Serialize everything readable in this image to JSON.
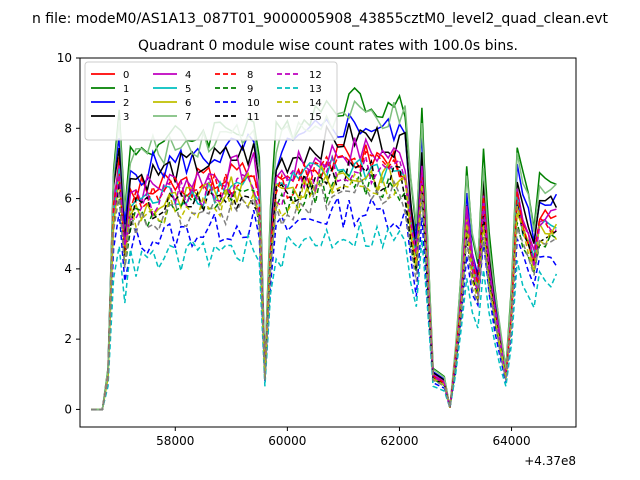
{
  "figure": {
    "suptitle": "n file: modeM0/AS1A13_087T01_9000005908_43855cztM0_level2_quad_clean.evt",
    "offset_label": "+4.37e8"
  },
  "chart_data": {
    "type": "line",
    "title": "Quadrant 0 module wise count rates with 100.0s bins.",
    "xlabel": "",
    "ylabel": "",
    "xlim": [
      56300,
      65150
    ],
    "ylim": [
      -0.5,
      10
    ],
    "x_offset": 437000000,
    "xticks": [
      58000,
      60000,
      62000,
      64000
    ],
    "xtick_labels": [
      "58000",
      "60000",
      "62000",
      "64000"
    ],
    "yticks": [
      0,
      2,
      4,
      6,
      8,
      10
    ],
    "ytick_labels": [
      "0",
      "2",
      "4",
      "6",
      "8",
      "10"
    ],
    "grid": false,
    "legend": {
      "placement": "top-left",
      "columns": 4
    },
    "series": [
      {
        "name": "0",
        "color": "#ff0000",
        "style": "solid",
        "plateau": 6.8,
        "peak": 7.5
      },
      {
        "name": "1",
        "color": "#008000",
        "style": "solid",
        "plateau": 8.2,
        "peak": 9.3
      },
      {
        "name": "2",
        "color": "#0000ff",
        "style": "solid",
        "plateau": 7.5,
        "peak": 8.6
      },
      {
        "name": "3",
        "color": "#000000",
        "style": "solid",
        "plateau": 7.3,
        "peak": 8.1
      },
      {
        "name": "4",
        "color": "#bf00bf",
        "style": "solid",
        "plateau": 6.9,
        "peak": 7.7
      },
      {
        "name": "5",
        "color": "#00bfbf",
        "style": "solid",
        "plateau": 6.5,
        "peak": 7.2
      },
      {
        "name": "6",
        "color": "#bfbf00",
        "style": "solid",
        "plateau": 6.3,
        "peak": 7.0
      },
      {
        "name": "7",
        "color": "#7fbf7f",
        "style": "solid",
        "plateau": 8.0,
        "peak": 8.6
      },
      {
        "name": "8",
        "color": "#ff0000",
        "style": "dashed",
        "plateau": 6.6,
        "peak": 7.3
      },
      {
        "name": "9",
        "color": "#008000",
        "style": "dashed",
        "plateau": 6.0,
        "peak": 6.8
      },
      {
        "name": "10",
        "color": "#0000ff",
        "style": "dashed",
        "plateau": 5.3,
        "peak": 5.9
      },
      {
        "name": "11",
        "color": "#000000",
        "style": "dashed",
        "plateau": 6.2,
        "peak": 7.0
      },
      {
        "name": "12",
        "color": "#bf00bf",
        "style": "dashed",
        "plateau": 6.5,
        "peak": 7.1
      },
      {
        "name": "13",
        "color": "#00bfbf",
        "style": "dashed",
        "plateau": 4.6,
        "peak": 5.3
      },
      {
        "name": "14",
        "color": "#bfbf00",
        "style": "dashed",
        "plateau": 6.1,
        "peak": 6.7
      },
      {
        "name": "15",
        "color": "#808080",
        "style": "dashed",
        "plateau": 5.8,
        "peak": 6.5
      }
    ]
  }
}
